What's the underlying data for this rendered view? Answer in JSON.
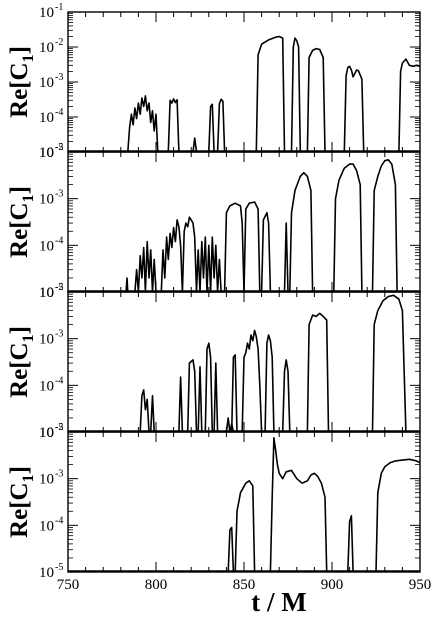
{
  "chart_data": [
    {
      "type": "line",
      "panel": 1,
      "ylabel": "Re[C1]",
      "ylabel_main": "Re[C",
      "ylabel_sub": "1",
      "ylabel_close": "]",
      "yscale": "log",
      "ylim_exp": [
        -5,
        -1
      ],
      "ytick_exps": [
        -5,
        -4,
        -3,
        -2,
        -1
      ],
      "xlim": [
        750,
        950
      ],
      "series": [
        {
          "x": [
            784,
            785,
            786,
            787,
            788,
            789,
            790,
            791,
            792,
            793,
            794,
            795,
            796,
            797,
            798,
            799,
            800,
            801
          ],
          "y": [
            1e-05,
            5e-05,
            0.00012,
            6e-05,
            0.00018,
            9e-05,
            0.00025,
            0.00012,
            0.00035,
            0.0002,
            0.0004,
            0.00015,
            0.00025,
            7e-05,
            0.00015,
            4e-05,
            0.00012,
            1e-05
          ]
        },
        {
          "x": [
            807,
            808,
            809,
            810,
            811,
            812,
            813
          ],
          "y": [
            1e-05,
            0.0003,
            0.00025,
            0.00033,
            0.00026,
            0.00031,
            1e-05
          ]
        },
        {
          "x": [
            821,
            822,
            823
          ],
          "y": [
            1e-05,
            2.5e-05,
            1e-05
          ]
        },
        {
          "x": [
            830,
            831,
            832,
            833
          ],
          "y": [
            1e-05,
            0.0002,
            0.00023,
            1e-05
          ]
        },
        {
          "x": [
            835,
            836,
            837,
            838,
            839
          ],
          "y": [
            1e-05,
            0.00024,
            0.00032,
            0.00028,
            1e-05
          ]
        },
        {
          "x": [
            857,
            858,
            860,
            864,
            868,
            870,
            872,
            873
          ],
          "y": [
            1e-05,
            0.006,
            0.012,
            0.016,
            0.019,
            0.02,
            0.018,
            1e-05
          ]
        },
        {
          "x": [
            877,
            878,
            879,
            880,
            881,
            882
          ],
          "y": [
            1e-05,
            0.01,
            0.018,
            0.015,
            0.01,
            1e-05
          ]
        },
        {
          "x": [
            886,
            887,
            889,
            891,
            893,
            895,
            896
          ],
          "y": [
            1e-05,
            0.005,
            0.008,
            0.009,
            0.0085,
            0.005,
            1e-05
          ]
        },
        {
          "x": [
            907,
            908,
            909,
            910,
            911,
            912,
            914,
            915,
            917,
            918
          ],
          "y": [
            1e-05,
            0.0015,
            0.0026,
            0.0028,
            0.0022,
            0.0014,
            0.0022,
            0.0021,
            0.0012,
            1e-05
          ]
        },
        {
          "x": [
            938,
            939,
            940,
            942,
            944,
            946,
            948,
            950
          ],
          "y": [
            1e-05,
            0.002,
            0.0035,
            0.0045,
            0.003,
            0.0028,
            0.003,
            0.0028
          ]
        }
      ]
    },
    {
      "type": "line",
      "panel": 2,
      "ylabel": "Re[C1]",
      "ylabel_main": "Re[C",
      "ylabel_sub": "1",
      "ylabel_close": "]",
      "yscale": "log",
      "ylim_exp": [
        -5,
        -2
      ],
      "ytick_exps": [
        -5,
        -4,
        -3,
        -2
      ],
      "xlim": [
        750,
        950
      ],
      "series": [
        {
          "x": [
            783,
            783.5,
            784
          ],
          "y": [
            1e-05,
            2e-05,
            1e-05
          ]
        },
        {
          "x": [
            788,
            789,
            790,
            791,
            792,
            793,
            794,
            795,
            796,
            797,
            798,
            799,
            800
          ],
          "y": [
            1e-05,
            3e-05,
            1e-05,
            6e-05,
            2e-05,
            9e-05,
            1e-05,
            0.00012,
            2e-05,
            8e-05,
            1e-05,
            5e-05,
            1e-05
          ]
        },
        {
          "x": [
            803,
            804,
            805,
            806,
            807,
            808,
            809,
            810,
            811,
            812,
            813,
            814,
            815
          ],
          "y": [
            1e-05,
            8e-05,
            2e-05,
            0.00015,
            5e-05,
            0.00018,
            9e-05,
            0.00024,
            0.00012,
            0.00035,
            0.00025,
            0.0001,
            1e-05
          ]
        },
        {
          "x": [
            815,
            816,
            817,
            818,
            819,
            820,
            821,
            822,
            823
          ],
          "y": [
            1e-05,
            0.0002,
            0.0003,
            0.00025,
            0.0004,
            0.00035,
            0.0003,
            0.00015,
            1e-05
          ]
        },
        {
          "x": [
            823,
            824,
            825,
            826,
            827,
            828,
            829,
            830,
            831,
            832,
            833,
            834,
            835,
            836,
            837
          ],
          "y": [
            1e-05,
            8e-05,
            1e-05,
            0.00012,
            2e-05,
            0.00015,
            1e-05,
            0.0001,
            1e-05,
            0.00015,
            2e-05,
            0.0001,
            1e-05,
            5e-05,
            1e-05
          ]
        },
        {
          "x": [
            839,
            840,
            842,
            845,
            848,
            849,
            850
          ],
          "y": [
            1e-05,
            0.0005,
            0.0007,
            0.0008,
            0.0007,
            0.0003,
            1e-05
          ]
        },
        {
          "x": [
            850,
            851,
            853,
            856,
            858,
            859
          ],
          "y": [
            1e-05,
            0.0006,
            0.0008,
            0.00085,
            0.0006,
            1e-05
          ]
        },
        {
          "x": [
            860,
            861,
            863,
            864,
            865
          ],
          "y": [
            1e-05,
            0.00035,
            0.0005,
            0.0003,
            1e-05
          ]
        },
        {
          "x": [
            873,
            874,
            875
          ],
          "y": [
            1e-05,
            0.0003,
            1e-05
          ]
        },
        {
          "x": [
            876,
            877,
            879,
            882,
            884,
            886,
            888,
            889
          ],
          "y": [
            1e-05,
            0.0005,
            0.0015,
            0.003,
            0.0036,
            0.003,
            0.0015,
            1e-05
          ]
        },
        {
          "x": [
            901,
            902,
            904,
            907,
            910,
            912,
            914,
            916,
            917
          ],
          "y": [
            1e-05,
            0.001,
            0.0025,
            0.0045,
            0.0055,
            0.0055,
            0.004,
            0.002,
            1e-05
          ]
        },
        {
          "x": [
            923,
            924,
            926,
            928,
            930,
            932,
            934,
            936,
            937
          ],
          "y": [
            1e-05,
            0.0015,
            0.003,
            0.005,
            0.0065,
            0.0068,
            0.0055,
            0.002,
            1e-05
          ]
        }
      ]
    },
    {
      "type": "line",
      "panel": 3,
      "ylabel": "Re[C1]",
      "ylabel_main": "Re[C",
      "ylabel_sub": "1",
      "ylabel_close": "]",
      "yscale": "log",
      "ylim_exp": [
        -5,
        -2
      ],
      "ytick_exps": [
        -5,
        -4,
        -3,
        -2
      ],
      "xlim": [
        750,
        950
      ],
      "series": [
        {
          "x": [
            791,
            792,
            793,
            794,
            795,
            796
          ],
          "y": [
            1e-05,
            6e-05,
            8e-05,
            3e-05,
            5e-05,
            1e-05
          ]
        },
        {
          "x": [
            797,
            798,
            799
          ],
          "y": [
            1e-05,
            6e-05,
            1e-05
          ]
        },
        {
          "x": [
            813,
            814,
            815
          ],
          "y": [
            1e-05,
            0.00015,
            1e-05
          ]
        },
        {
          "x": [
            818,
            819,
            821,
            822,
            823
          ],
          "y": [
            1e-05,
            0.0003,
            0.00035,
            0.0002,
            1e-05
          ]
        },
        {
          "x": [
            824,
            825,
            826
          ],
          "y": [
            1e-05,
            0.00025,
            1e-05
          ]
        },
        {
          "x": [
            828,
            829,
            830,
            831,
            832
          ],
          "y": [
            1e-05,
            0.0006,
            0.0008,
            0.0004,
            1e-05
          ]
        },
        {
          "x": [
            833,
            834,
            835
          ],
          "y": [
            1e-05,
            0.0003,
            1e-05
          ]
        },
        {
          "x": [
            840,
            841,
            842,
            843,
            844
          ],
          "y": [
            1e-05,
            2e-05,
            1e-05,
            1.5e-05,
            1e-05
          ]
        },
        {
          "x": [
            843,
            844,
            845,
            846
          ],
          "y": [
            1e-05,
            0.0004,
            0.00045,
            1e-05
          ]
        },
        {
          "x": [
            849,
            850,
            851,
            852,
            853,
            854,
            855,
            856,
            857,
            858,
            859,
            860
          ],
          "y": [
            1e-05,
            0.0004,
            0.0005,
            0.0008,
            0.0006,
            0.0012,
            0.0009,
            0.0015,
            0.0011,
            0.0006,
            0.0001,
            1e-05
          ]
        },
        {
          "x": [
            862,
            863,
            864,
            865,
            866,
            867
          ],
          "y": [
            1e-05,
            0.0008,
            0.0012,
            0.0009,
            0.0004,
            1e-05
          ]
        },
        {
          "x": [
            872,
            873,
            874,
            875,
            876
          ],
          "y": [
            1e-05,
            0.0002,
            0.00035,
            0.0002,
            1e-05
          ]
        },
        {
          "x": [
            886,
            887,
            889,
            891,
            893,
            895,
            897,
            898
          ],
          "y": [
            1e-05,
            0.002,
            0.0032,
            0.003,
            0.0035,
            0.003,
            0.0025,
            1e-05
          ]
        },
        {
          "x": [
            923,
            924,
            926,
            929,
            932,
            935,
            938,
            940,
            942
          ],
          "y": [
            1e-05,
            0.002,
            0.004,
            0.0065,
            0.008,
            0.0085,
            0.007,
            0.004,
            1e-05
          ]
        }
      ]
    },
    {
      "type": "line",
      "panel": 4,
      "ylabel": "Re[C1]",
      "ylabel_main": "Re[C",
      "ylabel_sub": "1",
      "ylabel_close": "]",
      "yscale": "log",
      "ylim_exp": [
        -5,
        -2
      ],
      "ytick_exps": [
        -5,
        -4,
        -3,
        -2
      ],
      "xlim": [
        750,
        950
      ],
      "xlabel": "t / M",
      "xticks": [
        750,
        800,
        850,
        900,
        950
      ],
      "series": [
        {
          "x": [
            841,
            842,
            843,
            844
          ],
          "y": [
            1e-05,
            8e-05,
            9e-05,
            1e-05
          ]
        },
        {
          "x": [
            845,
            846,
            848,
            851,
            853,
            855,
            856
          ],
          "y": [
            1e-05,
            0.0002,
            0.0005,
            0.0008,
            0.0009,
            0.0007,
            1e-05
          ]
        },
        {
          "x": [
            865,
            866,
            867,
            868,
            869,
            870,
            872,
            874,
            877,
            880,
            883,
            886,
            888,
            890,
            892,
            894,
            896,
            897
          ],
          "y": [
            1e-05,
            0.0004,
            0.0075,
            0.004,
            0.002,
            0.0013,
            0.001,
            0.0014,
            0.0015,
            0.001,
            0.0008,
            0.0009,
            0.0012,
            0.0013,
            0.0011,
            0.0008,
            0.0004,
            1e-05
          ]
        },
        {
          "x": [
            909,
            910,
            911,
            912
          ],
          "y": [
            1e-05,
            0.00012,
            0.00016,
            1e-05
          ]
        },
        {
          "x": [
            925,
            926,
            928,
            930,
            933,
            936,
            940,
            944,
            948,
            950
          ],
          "y": [
            1e-05,
            0.0005,
            0.0013,
            0.0018,
            0.0022,
            0.0024,
            0.0025,
            0.0026,
            0.0024,
            0.0022
          ]
        }
      ]
    }
  ]
}
